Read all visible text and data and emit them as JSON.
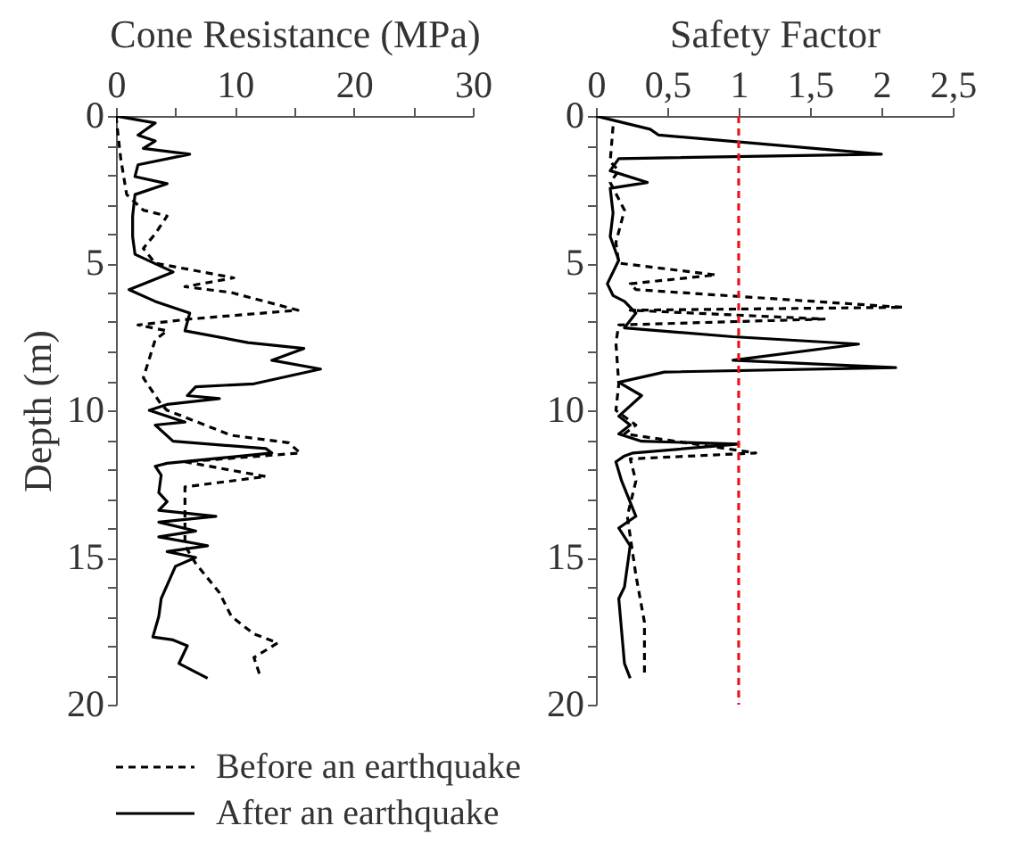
{
  "chart_data": [
    {
      "type": "line",
      "xlabel": "Cone Resistance (MPa)",
      "ylabel": "Depth (m)",
      "xlim": [
        0,
        30
      ],
      "xticks": [
        0,
        {
          "value": 5,
          "label": null
        },
        10,
        {
          "value": 15,
          "label": null
        },
        20,
        {
          "value": 25,
          "label": null
        },
        30
      ],
      "ylim": [
        20,
        0
      ],
      "yticks": [
        0,
        {
          "value": 1,
          "label": null
        },
        {
          "value": 2,
          "label": null
        },
        {
          "value": 3,
          "label": null
        },
        {
          "value": 4,
          "label": null
        },
        5,
        {
          "value": 6,
          "label": null
        },
        {
          "value": 7,
          "label": null
        },
        {
          "value": 8,
          "label": null
        },
        {
          "value": 9,
          "label": null
        },
        10,
        {
          "value": 11,
          "label": null
        },
        {
          "value": 12,
          "label": null
        },
        {
          "value": 13,
          "label": null
        },
        {
          "value": 14,
          "label": null
        },
        15,
        {
          "value": 16,
          "label": null
        },
        {
          "value": 17,
          "label": null
        },
        {
          "value": 18,
          "label": null
        },
        {
          "value": 19,
          "label": null
        },
        20
      ],
      "legend": "bottom",
      "grid": false,
      "series": [
        {
          "name": "Before an earthquake",
          "color": "#000000",
          "line_style": "dashed",
          "x": [
            0,
            0.4,
            0.9,
            2.3,
            4.3,
            3.3,
            2.3,
            3.3,
            9.9,
            5.8,
            9.7,
            15.3,
            6.2,
            1.85,
            4.3,
            3.3,
            2.3,
            3.8,
            4.3,
            9.7,
            14.5,
            15.5,
            5.8,
            12.6,
            5.8,
            5.8,
            5.8,
            6.7,
            8.7,
            9.7,
            11.6,
            13.6,
            11.6,
            12.1
          ],
          "values": [
            0,
            1.45,
            2.67,
            3.2,
            3.4,
            4.0,
            4.5,
            5.0,
            5.5,
            5.8,
            6.0,
            6.6,
            6.9,
            7.1,
            7.3,
            7.6,
            8.9,
            9.8,
            10.0,
            10.85,
            11.1,
            11.45,
            11.75,
            12.25,
            12.6,
            13.6,
            14.6,
            15.2,
            16.2,
            17.0,
            17.6,
            17.9,
            18.4,
            19.0
          ]
        },
        {
          "name": "After an earthquake",
          "color": "#000000",
          "line_style": "solid",
          "x": [
            0,
            3.3,
            1.85,
            3.3,
            2.3,
            6.2,
            1.85,
            1.6,
            4.3,
            1.6,
            1.4,
            1.4,
            1.6,
            4.8,
            1.1,
            3.3,
            6.2,
            5.8,
            11.1,
            15.8,
            13.1,
            17.2,
            11.6,
            6.7,
            6.0,
            8.7,
            4.3,
            2.8,
            5.8,
            3.3,
            4.8,
            12.6,
            13.1,
            4.3,
            3.3,
            3.8,
            3.6,
            4.3,
            3.6,
            8.4,
            3.6,
            6.7,
            3.6,
            7.7,
            4.3,
            6.7,
            5.0,
            3.8,
            3.6,
            3.1,
            4.8,
            6.0,
            5.3,
            7.7
          ],
          "values": [
            0,
            0.24,
            0.65,
            0.85,
            1.1,
            1.3,
            1.66,
            2.06,
            2.3,
            2.67,
            3.4,
            4.1,
            4.7,
            5.3,
            5.9,
            6.3,
            6.7,
            7.3,
            7.7,
            7.9,
            8.3,
            8.6,
            9.1,
            9.2,
            9.5,
            9.6,
            9.8,
            10.0,
            10.4,
            10.5,
            11.05,
            11.3,
            11.45,
            11.8,
            11.9,
            12.2,
            12.8,
            13.1,
            13.4,
            13.6,
            13.8,
            14.1,
            14.3,
            14.6,
            14.8,
            15.0,
            15.3,
            16.4,
            17.0,
            17.7,
            17.8,
            18.0,
            18.6,
            19.1
          ]
        }
      ]
    },
    {
      "type": "line",
      "xlabel": "Safety Factor",
      "xlim": [
        0,
        2.5
      ],
      "xticks": [
        0,
        {
          "value": 0.5,
          "label": "0,5"
        },
        1,
        {
          "value": 1.5,
          "label": "1,5"
        },
        2,
        {
          "value": 2.5,
          "label": "2,5"
        }
      ],
      "ylim": [
        20,
        0
      ],
      "yticks": [
        0,
        {
          "value": 1,
          "label": null
        },
        {
          "value": 2,
          "label": null
        },
        {
          "value": 3,
          "label": null
        },
        {
          "value": 4,
          "label": null
        },
        5,
        {
          "value": 6,
          "label": null
        },
        {
          "value": 7,
          "label": null
        },
        {
          "value": 8,
          "label": null
        },
        {
          "value": 9,
          "label": null
        },
        10,
        {
          "value": 11,
          "label": null
        },
        {
          "value": 12,
          "label": null
        },
        {
          "value": 13,
          "label": null
        },
        {
          "value": 14,
          "label": null
        },
        15,
        {
          "value": 16,
          "label": null
        },
        {
          "value": 17,
          "label": null
        },
        {
          "value": 18,
          "label": null
        },
        {
          "value": 19,
          "label": null
        },
        20
      ],
      "legend": "bottom",
      "grid": false,
      "ref_lines": [
        {
          "axis": "x",
          "value": 1,
          "color": "#e8141c",
          "line_style": "dashed"
        }
      ],
      "series": [
        {
          "name": "Before an earthquake",
          "color": "#000000",
          "line_style": "dashed",
          "x": [
            0.12,
            0.1,
            0.16,
            0.1,
            0.2,
            0.14,
            0.16,
            0.84,
            0.24,
            0.28,
            2.15,
            0.24,
            1.6,
            0.16,
            0.14,
            0.16,
            0.14,
            0.28,
            0.2,
            1.12,
            0.24,
            0.28,
            0.22,
            0.28,
            0.34,
            0.34
          ],
          "values": [
            0.35,
            1.55,
            1.86,
            2.26,
            3.2,
            4.3,
            5.0,
            5.4,
            5.7,
            5.9,
            6.5,
            6.6,
            6.9,
            7.1,
            7.7,
            9.1,
            10.0,
            10.5,
            10.8,
            11.45,
            11.65,
            12.4,
            13.6,
            15.6,
            17.2,
            19.0
          ]
        },
        {
          "name": "After an earthquake",
          "color": "#000000",
          "line_style": "solid",
          "x": [
            0,
            0.38,
            0.44,
            2.0,
            0.16,
            0.1,
            0.36,
            0.1,
            0.12,
            0.1,
            0.16,
            0.08,
            0.12,
            0.2,
            0.28,
            0.2,
            0.96,
            1.84,
            0.96,
            2.1,
            0.48,
            0.16,
            0.32,
            0.16,
            0.24,
            0.16,
            0.32,
            1.0,
            0.26,
            0.2,
            0.14,
            0.18,
            0.28,
            0.16,
            0.24,
            0.2,
            0.16,
            0.2,
            0.24
          ],
          "values": [
            0,
            0.45,
            0.65,
            1.3,
            1.45,
            1.86,
            2.26,
            2.46,
            3.3,
            4.1,
            4.9,
            5.7,
            6.1,
            6.3,
            6.7,
            7.2,
            7.5,
            7.75,
            8.3,
            8.55,
            8.7,
            9.05,
            9.5,
            10.2,
            10.5,
            10.8,
            11.05,
            11.15,
            11.45,
            11.55,
            11.75,
            12.4,
            13.6,
            14.0,
            14.6,
            16.0,
            16.4,
            18.6,
            19.1
          ]
        }
      ]
    }
  ]
}
